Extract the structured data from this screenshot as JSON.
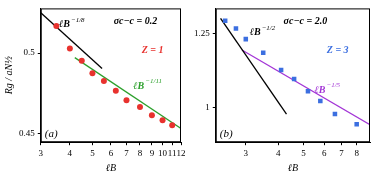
{
  "chart_data": [
    {
      "type": "scatter",
      "panel_label": "(a)",
      "log": true,
      "grid": false,
      "x_label": "ℓB",
      "y_label": "Rg / aN½",
      "xlim": [
        3,
        12
      ],
      "ylim": [
        0.445,
        0.53
      ],
      "xticks": [
        3,
        4,
        5,
        6,
        7,
        8,
        9,
        10,
        11,
        12
      ],
      "yticks": [
        0.45,
        0.5
      ],
      "annotations": [
        {
          "text": "σc−c = 0.2",
          "color": "#000000"
        },
        {
          "text": "Z = 1",
          "color": "#e8322e"
        },
        {
          "text": "ℓB",
          "sup": "−1/8",
          "color": "#000000"
        },
        {
          "text": "ℓB",
          "sup": "−1/11",
          "color": "#2ca02c"
        }
      ],
      "series": [
        {
          "type": "line",
          "color": "#000000",
          "line_style": "solid",
          "x": [
            3,
            5.5
          ],
          "values": [
            0.527,
            0.49
          ]
        },
        {
          "type": "line",
          "color": "#2ca02c",
          "line_style": "solid",
          "x": [
            4.2,
            12
          ],
          "values": [
            0.497,
            0.453
          ]
        },
        {
          "type": "scatter",
          "marker": "circle",
          "color": "#e8322e",
          "x": [
            3.5,
            4,
            4.5,
            5,
            5.6,
            6.3,
            7,
            8,
            9,
            10,
            11
          ],
          "values": [
            0.518,
            0.503,
            0.495,
            0.487,
            0.482,
            0.476,
            0.47,
            0.466,
            0.461,
            0.458,
            0.455
          ]
        }
      ]
    },
    {
      "type": "scatter",
      "panel_label": "(b)",
      "log": true,
      "grid": false,
      "x_label": "ℓB",
      "xlim": [
        2.3,
        9
      ],
      "ylim": [
        0.9,
        1.35
      ],
      "xticks": [
        3,
        4,
        5,
        6,
        7,
        8
      ],
      "yticks": [
        1,
        1.25
      ],
      "annotations": [
        {
          "text": "σc−c = 2.0",
          "color": "#000000"
        },
        {
          "text": "Z = 3",
          "color": "#3c6fe0"
        },
        {
          "text": "ℓB",
          "sup": "−1/2",
          "color": "#000000"
        },
        {
          "text": "ℓB",
          "sup": "−1/5",
          "color": "#a335d6"
        }
      ],
      "series": [
        {
          "type": "line",
          "color": "#000000",
          "line_style": "solid",
          "x": [
            2.4,
            4.3
          ],
          "values": [
            1.31,
            0.98
          ]
        },
        {
          "type": "line",
          "color": "#a335d6",
          "line_style": "solid",
          "x": [
            2.9,
            9
          ],
          "values": [
            1.19,
            0.949
          ]
        },
        {
          "type": "scatter",
          "marker": "square",
          "color": "#3c6fe0",
          "x": [
            2.5,
            2.75,
            3,
            3.5,
            4.1,
            4.6,
            5.2,
            5.8,
            6.6,
            8
          ],
          "values": [
            1.3,
            1.27,
            1.23,
            1.18,
            1.12,
            1.09,
            1.05,
            1.02,
            0.98,
            0.95
          ]
        }
      ]
    }
  ]
}
